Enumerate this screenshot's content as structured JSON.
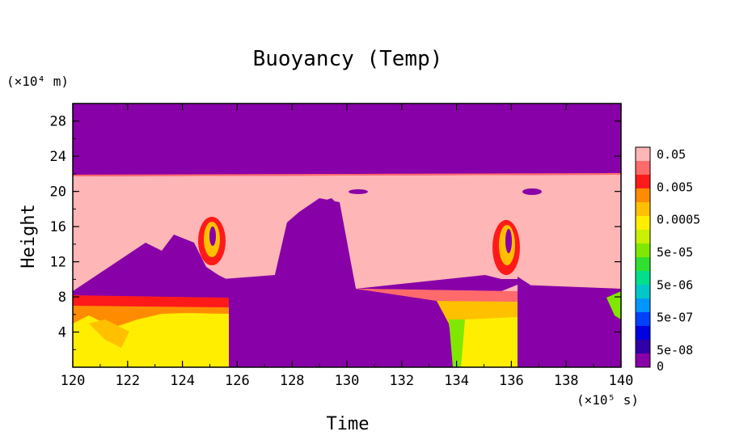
{
  "chart_data": {
    "type": "heatmap",
    "title": "Buoyancy (Temp)",
    "xlabel": "Time",
    "ylabel": "Height",
    "x_unit": "(×10⁵ s)",
    "y_unit": "(×10⁴ m)",
    "xlim": [
      120,
      140
    ],
    "ylim": [
      0,
      30
    ],
    "x_ticks": [
      "120",
      "122",
      "124",
      "126",
      "128",
      "130",
      "132",
      "134",
      "136",
      "138",
      "140"
    ],
    "y_ticks": [
      "4",
      "8",
      "12",
      "16",
      "20",
      "24",
      "28"
    ],
    "colorbar": {
      "labels": [
        "0.05",
        "0.005",
        "0.0005",
        "5e-05",
        "5e-06",
        "5e-07",
        "5e-08",
        "0"
      ],
      "colors": [
        "#ffb6b6",
        "#ff6a6a",
        "#ff1a1a",
        "#ff8c00",
        "#ffc000",
        "#ffee00",
        "#c8f000",
        "#80e800",
        "#30e030",
        "#00e08c",
        "#00c8c8",
        "#0096ff",
        "#0040ff",
        "#0000e0",
        "#3000a8",
        "#8800a8"
      ]
    },
    "regions": [
      {
        "name": "upper-background",
        "value": "0",
        "t": [
          120,
          140
        ],
        "z": [
          21.6,
          30
        ]
      },
      {
        "name": "upper-layer",
        "value": "0.05",
        "t": [
          120,
          140
        ],
        "z": [
          8.5,
          21.6
        ]
      },
      {
        "name": "lower-yellow-1",
        "value": "0.0005",
        "t": [
          120,
          125.7
        ],
        "z": [
          0,
          8.5
        ]
      },
      {
        "name": "lower-purple-1",
        "value": "0",
        "t": [
          125.7,
          133.8
        ],
        "z": [
          0,
          10.5
        ]
      },
      {
        "name": "lower-yellow-2",
        "value": "0.0005",
        "t": [
          133.8,
          136.3
        ],
        "z": [
          0,
          7.5
        ]
      },
      {
        "name": "lower-purple-2",
        "value": "0",
        "t": [
          136.3,
          140
        ],
        "z": [
          0,
          8.5
        ]
      }
    ]
  }
}
